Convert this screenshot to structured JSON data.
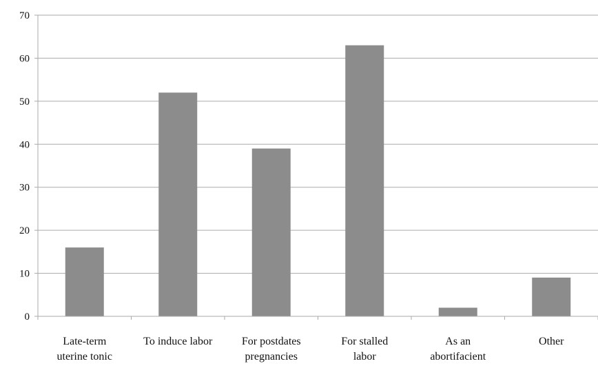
{
  "chart_data": {
    "type": "bar",
    "title": "",
    "xlabel": "",
    "ylabel": "",
    "categories": [
      [
        "Late-term",
        "uterine tonic"
      ],
      [
        "To induce labor"
      ],
      [
        "For postdates",
        "pregnancies"
      ],
      [
        "For stalled",
        "labor"
      ],
      [
        "As an",
        "abortifacient"
      ],
      [
        "Other"
      ]
    ],
    "values": [
      16,
      52,
      39,
      63,
      2,
      9
    ],
    "ylim": [
      0,
      70
    ],
    "yticks": [
      0,
      10,
      20,
      30,
      40,
      50,
      60,
      70
    ],
    "grid": true,
    "legend": "none",
    "colors": {
      "bar": "#8c8c8c",
      "grid": "#aaaaaa",
      "axis": "#aaaaaa"
    }
  }
}
